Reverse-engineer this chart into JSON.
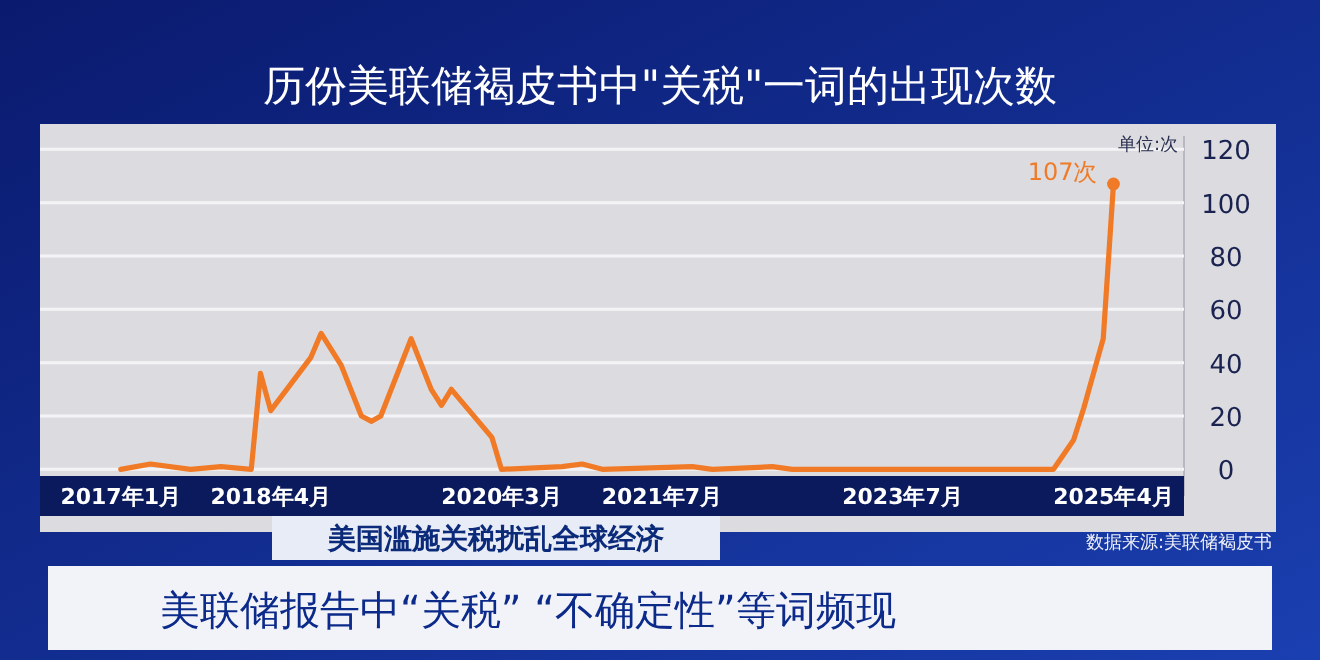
{
  "chart_data": {
    "type": "line",
    "title": "历份美联储褐皮书中\"关税\"一词的出现次数",
    "ylabel": "单位:次",
    "x": [
      "2017-01",
      "2017-04",
      "2017-08",
      "2017-11",
      "2018-02",
      "2018-03",
      "2018-04",
      "2018-08",
      "2018-09",
      "2018-11",
      "2019-01",
      "2019-02",
      "2019-03",
      "2019-06",
      "2019-08",
      "2019-09",
      "2019-10",
      "2020-02",
      "2020-03",
      "2020-09",
      "2020-11",
      "2021-01",
      "2021-10",
      "2021-12",
      "2022-06",
      "2022-08",
      "2024-10",
      "2024-12",
      "2025-01",
      "2025-03",
      "2025-04"
    ],
    "series": [
      {
        "color": "#f07a26",
        "values": [
          0,
          2,
          0,
          1,
          0,
          36,
          22,
          42,
          51,
          39,
          20,
          18,
          20,
          49,
          30,
          24,
          30,
          12,
          0,
          1,
          2,
          0,
          1,
          0,
          1,
          0,
          0,
          11,
          23,
          49,
          107
        ]
      }
    ],
    "xlim": [
      "2016-05",
      "2025-11"
    ],
    "xticks": [
      {
        "value": "2017-01",
        "label": "2017年1月"
      },
      {
        "value": "2018-04",
        "label": "2018年4月"
      },
      {
        "value": "2020-03",
        "label": "2020年3月"
      },
      {
        "value": "2021-07",
        "label": "2021年7月"
      },
      {
        "value": "2023-07",
        "label": "2023年7月"
      },
      {
        "value": "2025-04",
        "label": "2025年4月"
      }
    ],
    "ylim": [
      -10,
      125
    ],
    "yticks": [
      0,
      20,
      40,
      60,
      80,
      100,
      120
    ],
    "grid": "y",
    "marker": "none",
    "line_style": "solid",
    "annotations": [
      {
        "text": "107次",
        "x": "2025-04",
        "y": 107
      },
      "美国滥施关税扰乱全球经济",
      "数据来源:美联储褐皮书",
      "美联储报告中“关税” “不确定性”等词频现"
    ]
  }
}
